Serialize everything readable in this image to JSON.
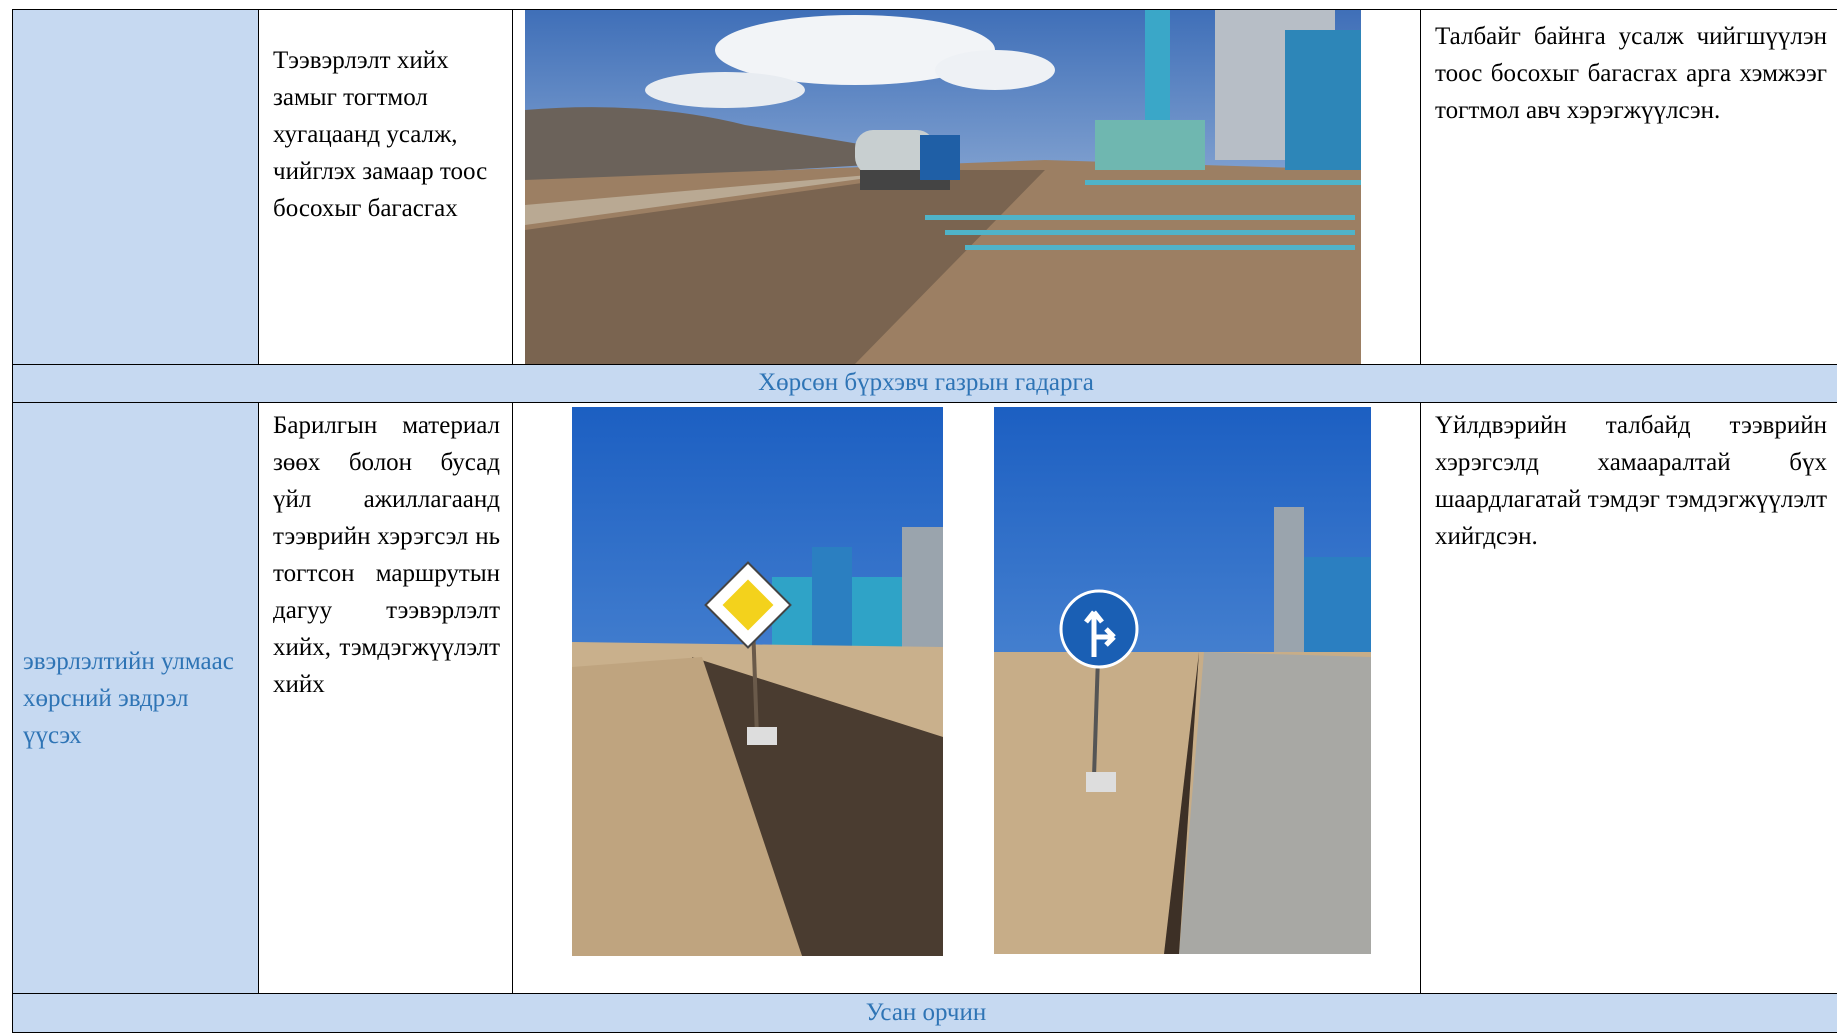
{
  "table": {
    "rows": [
      {
        "measure": "Тээвэрлэлт хийх замыг тогтмол хугацаанд усалж, чийглэх замаар тоос босохыг багасгах",
        "result": "Талбайг байнга усалж чийгшүүлэн тоос босохыг багасгах арга хэмжээг тогтмол авч хэрэгжүүлсэн."
      },
      {
        "section": "Хөрсөн бүрхэвч газрын гадарга"
      },
      {
        "risk": "эвэрлэлтийн улмаас хөрсний эвдрэл үүсэх",
        "measure": "Барилгын материал зөөх болон бусад үйл ажиллагаанд тээврийн хэрэгсэл нь тогтсон маршрутын дагуу тээвэрлэлт хийх, тэмдэгжүүлэлт хийх",
        "result": "Үйлдвэрийн талбайд тээврийн хэрэгсэлд хамааралтай бүх шаардлагатай тэмдэг тэмдэгжүүлэлт хийгдсэн."
      },
      {
        "section": "Усан орчин"
      }
    ]
  }
}
